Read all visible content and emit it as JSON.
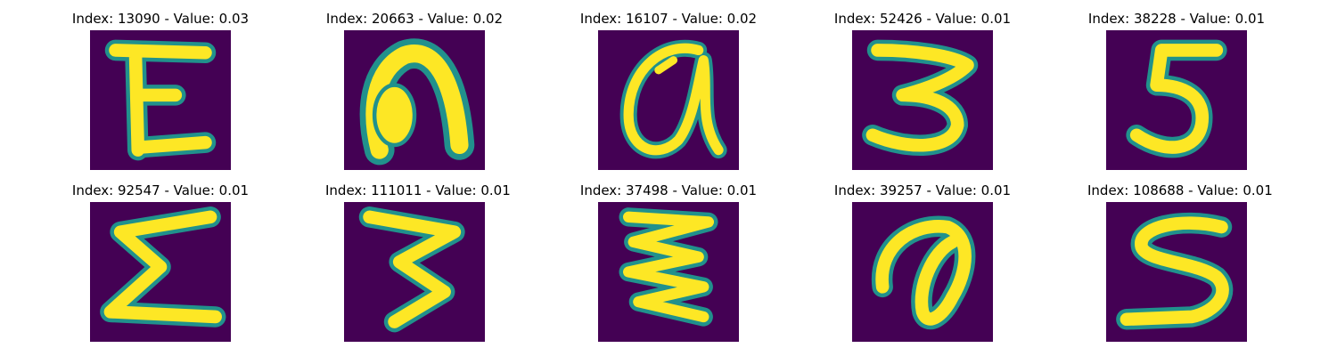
{
  "panels": [
    {
      "title": "Index: 13090 - Value: 0.03",
      "glyph": "E-shape"
    },
    {
      "title": "Index: 20663 - Value: 0.02",
      "glyph": "n-shape"
    },
    {
      "title": "Index: 16107 - Value: 0.02",
      "glyph": "a-shape"
    },
    {
      "title": "Index: 52426 - Value: 0.01",
      "glyph": "3-shape"
    },
    {
      "title": "Index: 38228 - Value: 0.01",
      "glyph": "5-shape"
    },
    {
      "title": "Index: 92547 - Value: 0.01",
      "glyph": "sigma-shape"
    },
    {
      "title": "Index: 111011 - Value: 0.01",
      "glyph": "3-shape"
    },
    {
      "title": "Index: 37498 - Value: 0.01",
      "glyph": "3-shape"
    },
    {
      "title": "Index: 39257 - Value: 0.01",
      "glyph": "a-shape"
    },
    {
      "title": "Index: 108688 - Value: 0.01",
      "glyph": "5-shape"
    }
  ],
  "colors": {
    "background": "#440154",
    "stroke_glow": "#21918c",
    "stroke_core": "#fde725"
  }
}
